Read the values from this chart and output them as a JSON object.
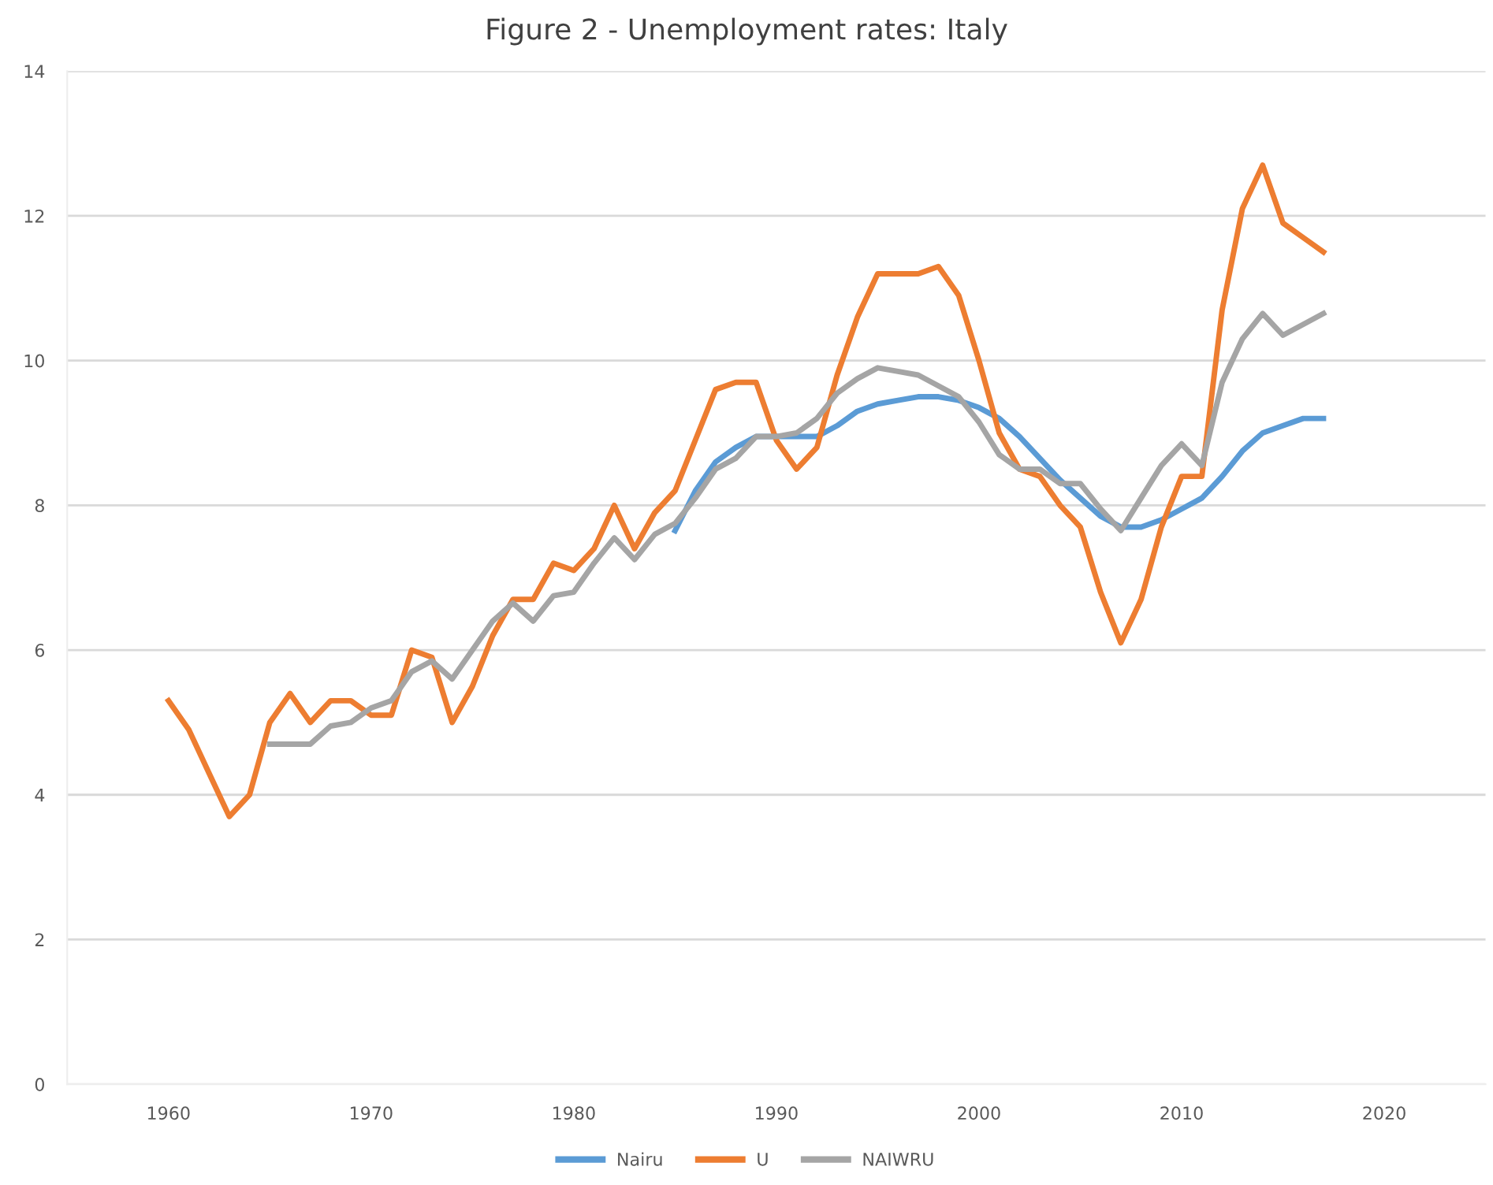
{
  "chart_data": {
    "type": "line",
    "title": "Figure 2 - Unemployment rates: Italy",
    "x": [
      1960,
      1961,
      1962,
      1963,
      1964,
      1965,
      1966,
      1967,
      1968,
      1969,
      1970,
      1971,
      1972,
      1973,
      1974,
      1975,
      1976,
      1977,
      1978,
      1979,
      1980,
      1981,
      1982,
      1983,
      1984,
      1985,
      1986,
      1987,
      1988,
      1989,
      1990,
      1991,
      1992,
      1993,
      1994,
      1995,
      1996,
      1997,
      1998,
      1999,
      2000,
      2001,
      2002,
      2003,
      2004,
      2005,
      2006,
      2007,
      2008,
      2009,
      2010,
      2011,
      2012,
      2013,
      2014,
      2015,
      2016,
      2017
    ],
    "series": [
      {
        "name": "Nairu",
        "color": "#5b9bd5",
        "values": [
          null,
          null,
          null,
          null,
          null,
          null,
          null,
          null,
          null,
          null,
          null,
          null,
          null,
          null,
          null,
          null,
          null,
          null,
          null,
          null,
          null,
          null,
          null,
          null,
          null,
          7.65,
          8.2,
          8.6,
          8.8,
          8.95,
          8.95,
          8.95,
          8.95,
          9.1,
          9.3,
          9.4,
          9.45,
          9.5,
          9.5,
          9.45,
          9.35,
          9.2,
          8.95,
          8.65,
          8.35,
          8.1,
          7.85,
          7.7,
          7.7,
          7.8,
          7.95,
          8.1,
          8.4,
          8.75,
          9.0,
          9.1,
          9.2,
          9.2
        ]
      },
      {
        "name": "U",
        "color": "#ed7d31",
        "values": [
          5.3,
          4.9,
          4.3,
          3.7,
          4.0,
          5.0,
          5.4,
          5.0,
          5.3,
          5.3,
          5.1,
          5.1,
          6.0,
          5.9,
          5.0,
          5.5,
          6.2,
          6.7,
          6.7,
          7.2,
          7.1,
          7.4,
          8.0,
          7.4,
          7.9,
          8.2,
          8.9,
          9.6,
          9.7,
          9.7,
          8.9,
          8.5,
          8.8,
          9.8,
          10.6,
          11.2,
          11.2,
          11.2,
          11.3,
          10.9,
          10.0,
          9.0,
          8.5,
          8.4,
          8.0,
          7.7,
          6.8,
          6.1,
          6.7,
          7.7,
          8.4,
          8.4,
          10.7,
          12.1,
          12.7,
          11.9,
          11.7,
          11.5
        ]
      },
      {
        "name": "NAIWRU",
        "color": "#a5a5a5",
        "values": [
          null,
          null,
          null,
          null,
          null,
          4.7,
          4.7,
          4.7,
          4.95,
          5.0,
          5.2,
          5.3,
          5.7,
          5.85,
          5.6,
          6.0,
          6.4,
          6.65,
          6.4,
          6.75,
          6.8,
          7.2,
          7.55,
          7.25,
          7.6,
          7.75,
          8.1,
          8.5,
          8.65,
          8.95,
          8.95,
          9.0,
          9.2,
          9.55,
          9.75,
          9.9,
          9.85,
          9.8,
          9.65,
          9.5,
          9.15,
          8.7,
          8.5,
          8.5,
          8.3,
          8.3,
          7.95,
          7.65,
          8.1,
          8.55,
          8.85,
          8.55,
          9.7,
          10.3,
          10.65,
          10.35,
          10.5,
          10.65
        ]
      }
    ],
    "xlim": [
      1955,
      2025
    ],
    "xticks": [
      1960,
      1970,
      1980,
      1990,
      2000,
      2010,
      2020
    ],
    "ylim": [
      0,
      14
    ],
    "yticks": [
      0,
      2,
      4,
      6,
      8,
      10,
      12,
      14
    ],
    "grid": "y",
    "legend": "bottom",
    "marker": "none",
    "line_style": "solid"
  }
}
